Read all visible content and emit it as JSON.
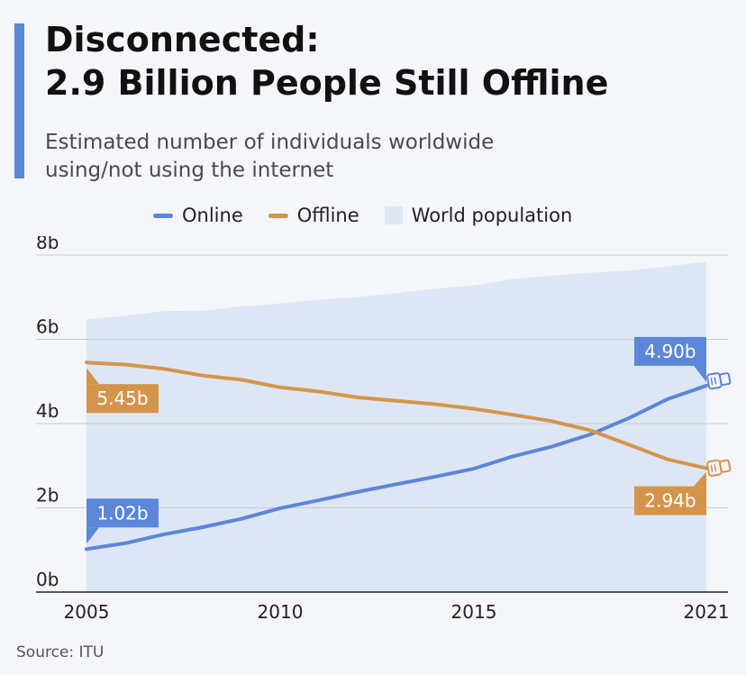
{
  "header": {
    "title_line1": "Disconnected:",
    "title_line2": "2.9 Billion People Still Offline",
    "subtitle_line1": "Estimated number of individuals worldwide",
    "subtitle_line2": "using/not using the internet"
  },
  "source": "Source: ITU",
  "colors": {
    "online": "#5b87d8",
    "offline": "#d4954a",
    "population": "#dde6f5",
    "accent": "#5b87d8"
  },
  "icons": [
    "cable-plug-icon"
  ],
  "chart_data": {
    "type": "line",
    "x": [
      2005,
      2006,
      2007,
      2008,
      2009,
      2010,
      2011,
      2012,
      2013,
      2014,
      2015,
      2016,
      2017,
      2018,
      2019,
      2020,
      2021
    ],
    "series": [
      {
        "name": "Online",
        "values": [
          1.02,
          1.16,
          1.37,
          1.54,
          1.74,
          1.99,
          2.18,
          2.38,
          2.56,
          2.74,
          2.93,
          3.22,
          3.45,
          3.74,
          4.13,
          4.58,
          4.9
        ]
      },
      {
        "name": "Offline",
        "values": [
          5.45,
          5.4,
          5.3,
          5.14,
          5.04,
          4.86,
          4.76,
          4.62,
          4.54,
          4.46,
          4.35,
          4.21,
          4.06,
          3.84,
          3.5,
          3.15,
          2.94
        ]
      },
      {
        "name": "World population",
        "type": "area",
        "values": [
          6.47,
          6.56,
          6.67,
          6.68,
          6.78,
          6.85,
          6.94,
          7.0,
          7.1,
          7.2,
          7.28,
          7.43,
          7.51,
          7.58,
          7.63,
          7.73,
          7.84
        ]
      }
    ],
    "yticks": [
      "0b",
      "2b",
      "4b",
      "6b",
      "8b"
    ],
    "ytick_values": [
      0,
      2,
      4,
      6,
      8
    ],
    "xticks": [
      2005,
      2010,
      2015,
      2021
    ],
    "ylim": [
      0,
      8
    ],
    "xlim": [
      2005,
      2021
    ],
    "grid": true,
    "legend_position": "top",
    "annotations": [
      {
        "series": "Offline",
        "x": 2005,
        "y": 5.45,
        "text": "5.45b"
      },
      {
        "series": "Online",
        "x": 2005,
        "y": 1.02,
        "text": "1.02b"
      },
      {
        "series": "Online",
        "x": 2021,
        "y": 4.9,
        "text": "4.90b"
      },
      {
        "series": "Offline",
        "x": 2021,
        "y": 2.94,
        "text": "2.94b"
      }
    ]
  }
}
